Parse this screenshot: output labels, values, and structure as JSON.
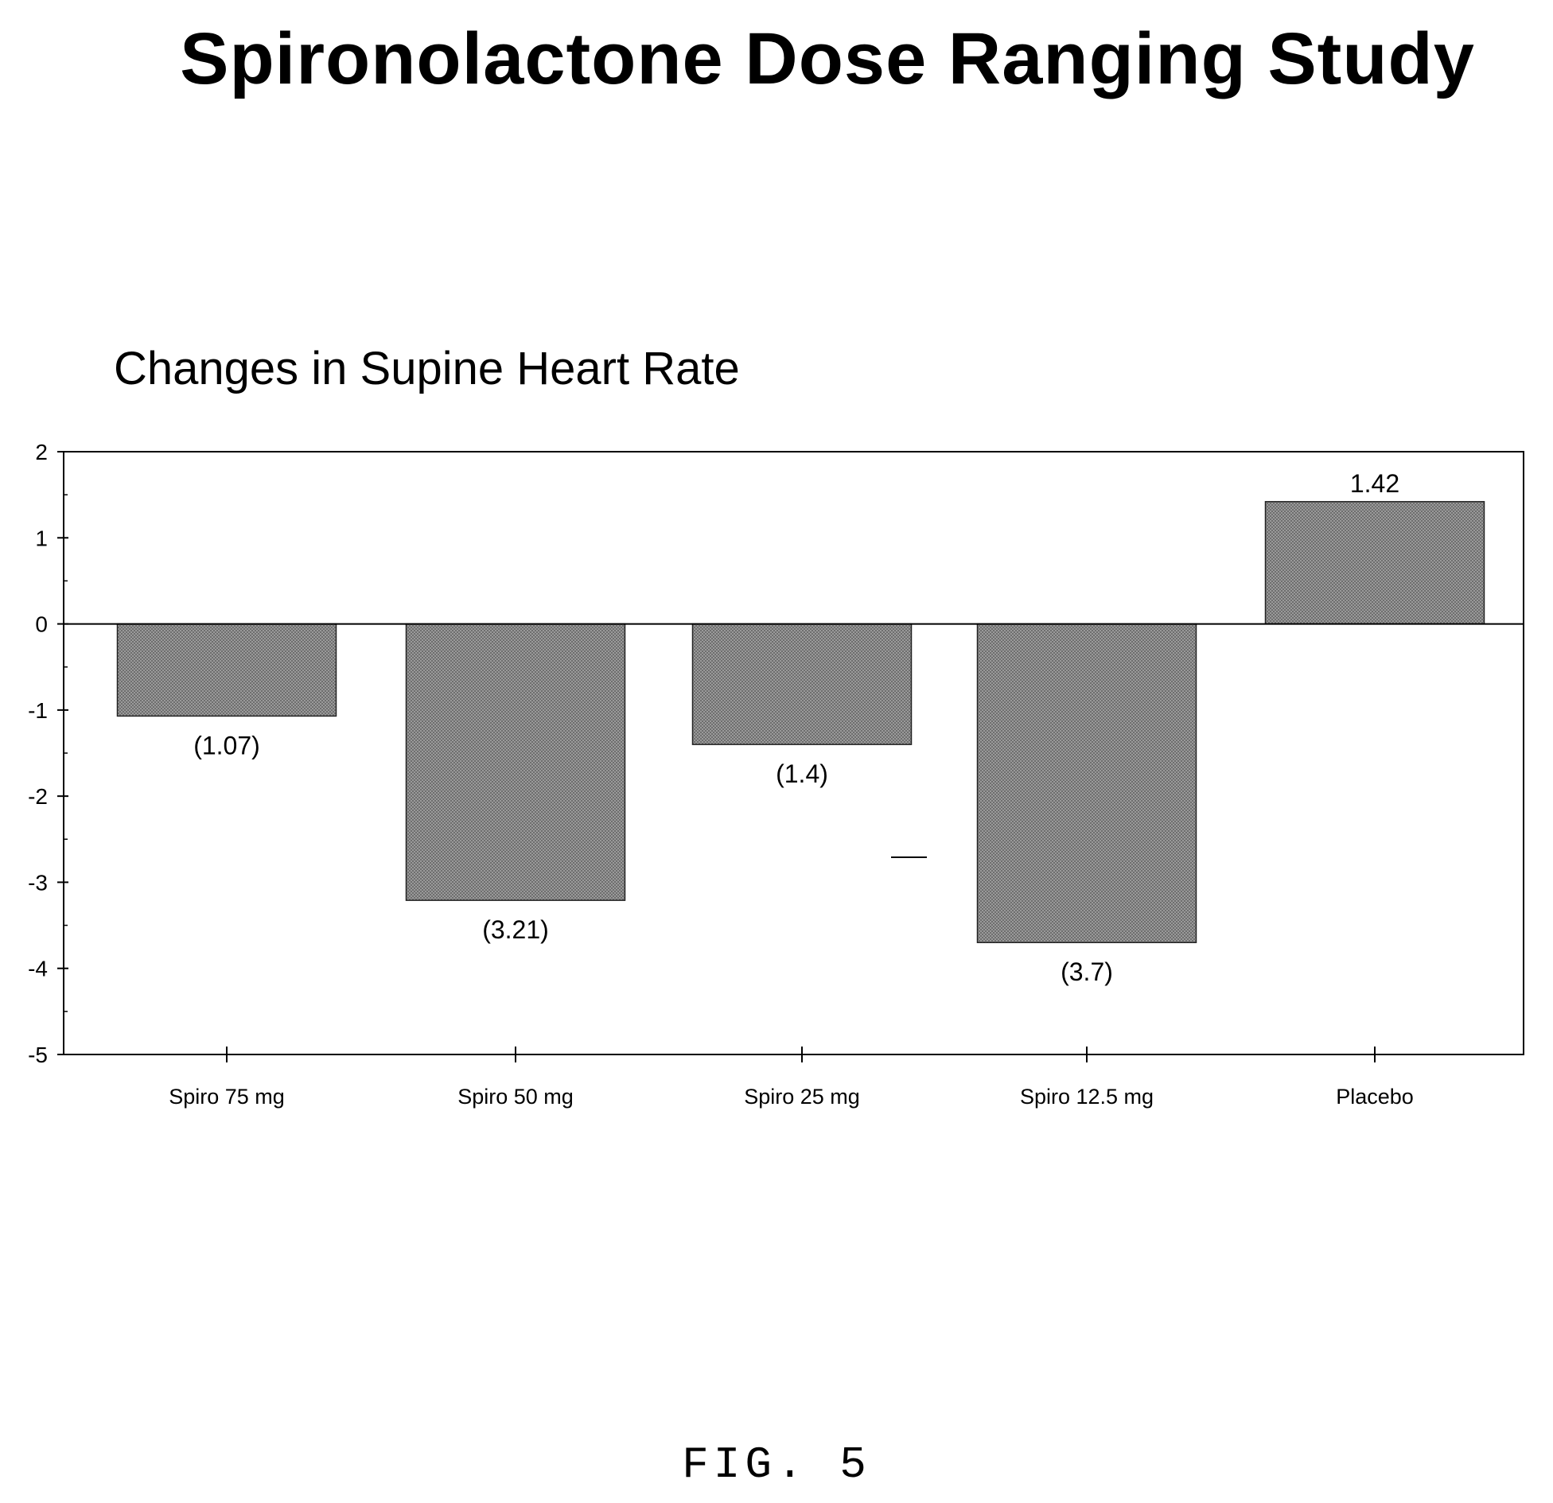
{
  "page_title": "Spironolactone Dose Ranging Study",
  "figure_label": "FIG.  5",
  "chart_data": {
    "type": "bar",
    "title": "Changes in Supine Heart Rate",
    "xlabel": "",
    "ylabel": "",
    "categories": [
      "Spiro 75 mg",
      "Spiro 50 mg",
      "Spiro 25 mg",
      "Spiro 12.5 mg",
      "Placebo"
    ],
    "values": [
      -1.07,
      -3.21,
      -1.4,
      -3.7,
      1.42
    ],
    "value_labels": [
      "(1.07)",
      "(3.21)",
      "(1.4)",
      "(3.7)",
      "1.42"
    ],
    "ylim": [
      -5,
      2
    ],
    "yticks": [
      2,
      1,
      0,
      -1,
      -2,
      -3,
      -4,
      -5
    ],
    "bar_color": "#8f8f8f",
    "grid": false
  }
}
